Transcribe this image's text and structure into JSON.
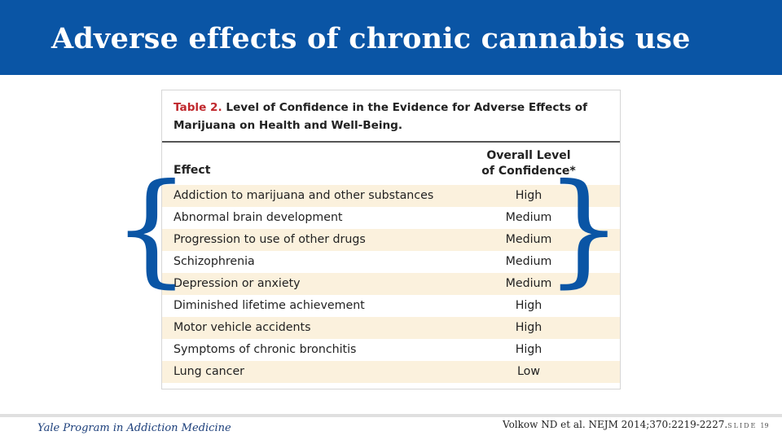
{
  "slide": {
    "title": "Adverse effects of chronic cannabis use",
    "colors": {
      "header": "#0a55a5",
      "brace": "#0a55a5",
      "table_label": "#c0282d",
      "row_shade": "#fbf1dd"
    }
  },
  "table": {
    "label": "Table 2.",
    "caption": "Level of Confidence in the Evidence for Adverse Effects of Marijuana on Health and Well-Being.",
    "col_effect": "Effect",
    "col_conf_line1": "Overall Level",
    "col_conf_line2": "of Confidence*",
    "rows": [
      {
        "effect": "Addiction to marijuana and other substances",
        "level": "High"
      },
      {
        "effect": "Abnormal brain development",
        "level": "Medium"
      },
      {
        "effect": "Progression to use of other drugs",
        "level": "Medium"
      },
      {
        "effect": "Schizophrenia",
        "level": "Medium"
      },
      {
        "effect": "Depression or anxiety",
        "level": "Medium"
      },
      {
        "effect": "Diminished lifetime achievement",
        "level": "High"
      },
      {
        "effect": "Motor vehicle accidents",
        "level": "High"
      },
      {
        "effect": "Symptoms of chronic bronchitis",
        "level": "High"
      },
      {
        "effect": "Lung cancer",
        "level": "Low"
      }
    ]
  },
  "braces": {
    "left": "{",
    "right": "}"
  },
  "footer": {
    "program": "Yale Program in Addiction Medicine",
    "citation": "Volkow ND et al. NEJM 2014;370:2219-2227.",
    "slide_label": "SLIDE",
    "slide_number": "19"
  }
}
